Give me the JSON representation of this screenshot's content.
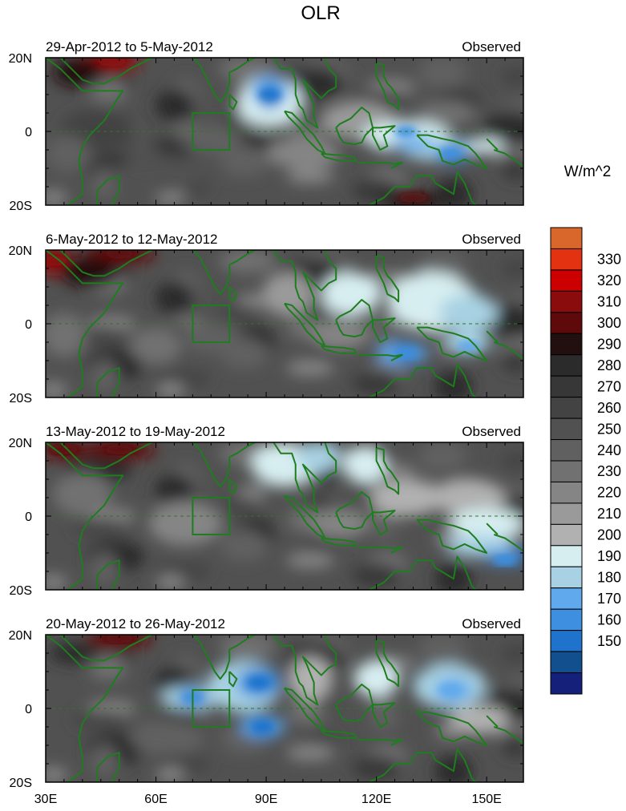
{
  "title": "OLR",
  "x_tick_labels": [
    "30E",
    "60E",
    "90E",
    "120E",
    "150E"
  ],
  "y_tick_labels": [
    "20N",
    "0",
    "20S"
  ],
  "colorbar": {
    "unit": "W/m^2",
    "levels": [
      150,
      160,
      170,
      180,
      190,
      200,
      210,
      220,
      230,
      240,
      250,
      260,
      270,
      280,
      290,
      300,
      310,
      320,
      330
    ],
    "labels": [
      "150",
      "160",
      "170",
      "180",
      "190",
      "200",
      "210",
      "220",
      "230",
      "240",
      "250",
      "260",
      "270",
      "280",
      "290",
      "300",
      "310",
      "320",
      "330"
    ],
    "colors": [
      "#15207a",
      "#124f8f",
      "#1f73cc",
      "#3e8fdf",
      "#5fa9ec",
      "#a8d2e3",
      "#d7eef1",
      "#b1b1b1",
      "#9a9a9a",
      "#858585",
      "#717171",
      "#606060",
      "#515151",
      "#434343",
      "#373737",
      "#2b2b2b",
      "#220f0f",
      "#5e0a0a",
      "#8a0c0c",
      "#cc0000",
      "#e23211",
      "#d9662a"
    ]
  },
  "chart_data": [
    {
      "type": "heatmap",
      "variable": "OLR",
      "period": "29-Apr-2012 to 5-May-2012",
      "label": "Observed",
      "xlim": [
        30,
        160
      ],
      "ylim": [
        -20,
        20
      ],
      "x_ticks": [
        30,
        60,
        90,
        120,
        150
      ],
      "y_ticks": [
        20,
        0,
        -20
      ],
      "convective_minima": [
        {
          "lon": 91,
          "lat": 10,
          "olr": 160
        },
        {
          "lon": 128,
          "lat": 0,
          "olr": 170
        },
        {
          "lon": 140,
          "lat": -6,
          "olr": 170
        }
      ],
      "warm_maxima": [
        {
          "lon": 48,
          "lat": 19,
          "olr": 320
        },
        {
          "lon": 130,
          "lat": -18,
          "olr": 310
        }
      ]
    },
    {
      "type": "heatmap",
      "variable": "OLR",
      "period": "6-May-2012 to 12-May-2012",
      "label": "Observed",
      "xlim": [
        30,
        160
      ],
      "ylim": [
        -20,
        20
      ],
      "x_ticks": [
        30,
        60,
        90,
        120,
        150
      ],
      "y_ticks": [
        20,
        0,
        -20
      ],
      "convective_minima": [
        {
          "lon": 128,
          "lat": -8,
          "olr": 170
        },
        {
          "lon": 145,
          "lat": -6,
          "olr": 180
        }
      ],
      "warm_maxima": [
        {
          "lon": 32,
          "lat": 17,
          "olr": 320
        },
        {
          "lon": 50,
          "lat": 19,
          "olr": 310
        }
      ]
    },
    {
      "type": "heatmap",
      "variable": "OLR",
      "period": "13-May-2012 to 19-May-2012",
      "label": "Observed",
      "xlim": [
        30,
        160
      ],
      "ylim": [
        -20,
        20
      ],
      "x_ticks": [
        30,
        60,
        90,
        120,
        150
      ],
      "y_ticks": [
        20,
        0,
        -20
      ],
      "convective_minima": [
        {
          "lon": 155,
          "lat": -12,
          "olr": 170
        }
      ],
      "warm_maxima": [
        {
          "lon": 35,
          "lat": 18,
          "olr": 310
        },
        {
          "lon": 50,
          "lat": 18,
          "olr": 310
        }
      ]
    },
    {
      "type": "heatmap",
      "variable": "OLR",
      "period": "20-May-2012 to 26-May-2012",
      "label": "Observed",
      "xlim": [
        30,
        160
      ],
      "ylim": [
        -20,
        20
      ],
      "x_ticks": [
        30,
        60,
        90,
        120,
        150
      ],
      "y_ticks": [
        20,
        0,
        -20
      ],
      "convective_minima": [
        {
          "lon": 70,
          "lat": 3,
          "olr": 170
        },
        {
          "lon": 88,
          "lat": 7,
          "olr": 160
        },
        {
          "lon": 89,
          "lat": -5,
          "olr": 160
        },
        {
          "lon": 140,
          "lat": 5,
          "olr": 180
        }
      ],
      "warm_maxima": [
        {
          "lon": 50,
          "lat": 19,
          "olr": 310
        }
      ]
    }
  ]
}
